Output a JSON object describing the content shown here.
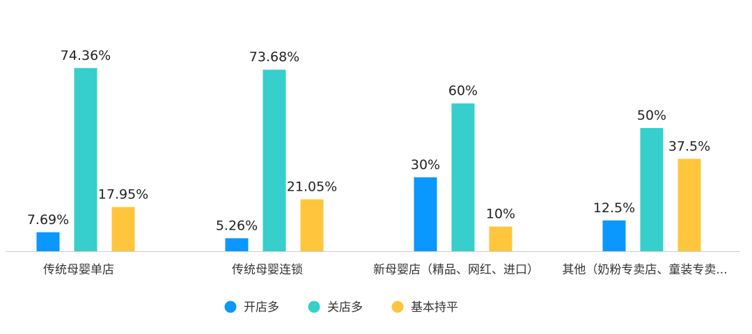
{
  "chart_data": {
    "type": "bar",
    "categories": [
      "传统母婴单店",
      "传统母婴连锁",
      "新母婴店（精品、网红、进口）",
      "其他（奶粉专卖店、童装专卖..."
    ],
    "series": [
      {
        "name": "开店多",
        "values": [
          7.69,
          5.26,
          30,
          12.5
        ],
        "labels": [
          "7.69%",
          "5.26%",
          "30%",
          "12.5%"
        ],
        "color": "#0a97fe"
      },
      {
        "name": "关店多",
        "values": [
          74.36,
          73.68,
          60,
          50
        ],
        "labels": [
          "74.36%",
          "73.68%",
          "60%",
          "50%"
        ],
        "color": "#36cfcb"
      },
      {
        "name": "基本持平",
        "values": [
          17.95,
          21.05,
          10,
          37.5
        ],
        "labels": [
          "17.95%",
          "21.05%",
          "10%",
          "37.5%"
        ],
        "color": "#ffc53d"
      }
    ],
    "title": "",
    "xlabel": "",
    "ylabel": "",
    "ylim": [
      0,
      75
    ],
    "grid": false,
    "legend": "bottom-center",
    "axis_color": "#cccccc"
  }
}
